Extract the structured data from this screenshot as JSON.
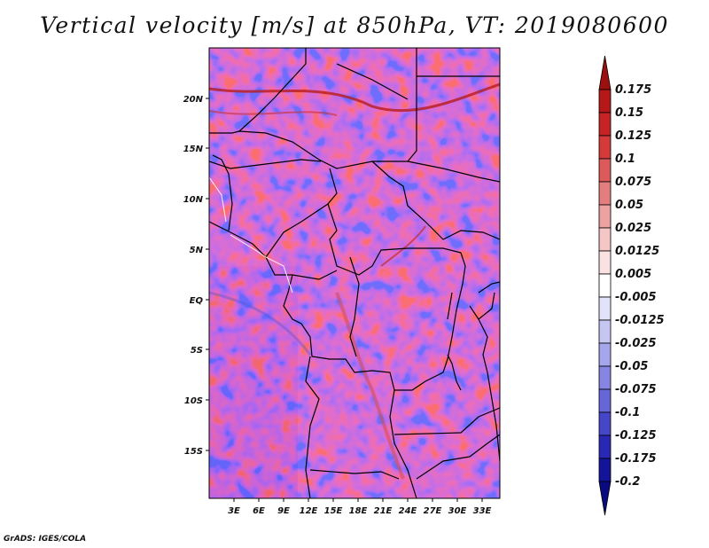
{
  "title": "Vertical velocity [m/s] at 850hPa, VT: 2019080600",
  "credit": "GrADS: IGES/COLA",
  "map": {
    "lon_range": [
      0,
      35
    ],
    "lat_range": [
      -20,
      24
    ],
    "x_ticks": [
      "3E",
      "6E",
      "9E",
      "12E",
      "15E",
      "18E",
      "21E",
      "24E",
      "27E",
      "30E",
      "33E"
    ],
    "y_ticks": [
      "20N",
      "15N",
      "10N",
      "5N",
      "EQ",
      "5S",
      "10S",
      "15S"
    ]
  },
  "colorbar": {
    "labels": [
      "0.175",
      "0.15",
      "0.125",
      "0.1",
      "0.075",
      "0.05",
      "0.025",
      "0.0125",
      "0.005",
      "-0.005",
      "-0.0125",
      "-0.025",
      "-0.05",
      "-0.075",
      "-0.1",
      "-0.125",
      "-0.175",
      "-0.2"
    ],
    "colors": [
      "#9c1010",
      "#b51818",
      "#c62424",
      "#d43a3a",
      "#dc5a5a",
      "#e47e7e",
      "#eda2a2",
      "#f5c6c6",
      "#fbe2e2",
      "#ffffff",
      "#e2e2fb",
      "#c6c6f3",
      "#a6a6ec",
      "#8686e2",
      "#6666d8",
      "#4646c8",
      "#2828b4",
      "#14149a",
      "#0a0a80"
    ]
  }
}
